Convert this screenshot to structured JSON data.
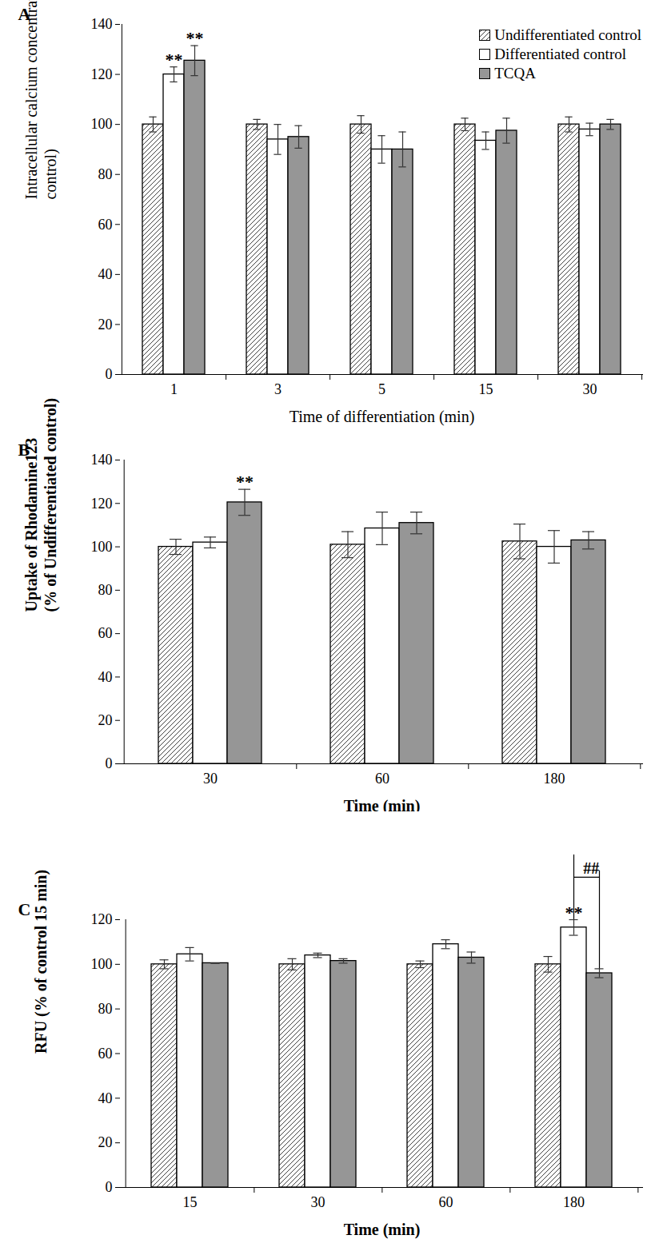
{
  "chart_data": [
    {
      "type": "bar",
      "title": "A",
      "x_label": "Time of differentiation (min)",
      "y_label": "Intracellular calcium concentration (% of\ncontrol)",
      "categories": [
        "1",
        "3",
        "5",
        "15",
        "30"
      ],
      "series": [
        {
          "name": "Undifferentiated control",
          "color": "#404040",
          "values": [
            100,
            100,
            100,
            100,
            100
          ],
          "errors": [
            3,
            2,
            3.5,
            2.5,
            3
          ]
        },
        {
          "name": "Differentiated control",
          "color": "#ffffff",
          "values": [
            120,
            94,
            90,
            93.5,
            98
          ],
          "errors": [
            3,
            6,
            5.5,
            3.5,
            2.5
          ]
        },
        {
          "name": "TCQA",
          "color": "#969696",
          "values": [
            125.5,
            95,
            90,
            97.5,
            100
          ],
          "errors": [
            6,
            4.5,
            7,
            5,
            2
          ]
        }
      ],
      "ylim": [
        0,
        140
      ],
      "yticks": [
        0,
        20,
        40,
        60,
        80,
        100,
        120,
        140
      ],
      "legend": "top-right",
      "annotations": [
        {
          "text": "**",
          "category": "1",
          "series": "Differentiated control"
        },
        {
          "text": "**",
          "category": "1",
          "series": "TCQA"
        }
      ]
    },
    {
      "type": "bar",
      "title": "B",
      "x_label": "Time (min)",
      "y_label": "Uptake of Rhodamine123\n(% of Undifferentiated control)",
      "categories": [
        "30",
        "60",
        "180"
      ],
      "series": [
        {
          "name": "Undifferentiated control",
          "color": "#404040",
          "values": [
            100,
            101,
            102.5
          ],
          "errors": [
            3.5,
            6,
            8
          ]
        },
        {
          "name": "Differentiated control",
          "color": "#ffffff",
          "values": [
            102,
            108.5,
            100
          ],
          "errors": [
            2.5,
            7.5,
            7.5
          ]
        },
        {
          "name": "TCQA",
          "color": "#969696",
          "values": [
            120.5,
            111,
            103
          ],
          "errors": [
            6,
            5,
            4
          ]
        }
      ],
      "ylim": [
        0,
        140
      ],
      "yticks": [
        0,
        20,
        40,
        60,
        80,
        100,
        120,
        140
      ],
      "annotations": [
        {
          "text": "**",
          "category": "30",
          "series": "TCQA"
        }
      ]
    },
    {
      "type": "bar",
      "title": "C",
      "x_label": "Time (min)",
      "y_label": "RFU (% of control 15 min)",
      "categories": [
        "15",
        "30",
        "60",
        "180"
      ],
      "series": [
        {
          "name": "Undifferentiated control",
          "color": "#404040",
          "values": [
            100,
            100,
            100,
            100
          ],
          "errors": [
            2,
            2.5,
            1.5,
            3.5
          ]
        },
        {
          "name": "Differentiated control",
          "color": "#ffffff",
          "values": [
            104.5,
            104,
            109,
            116.5
          ],
          "errors": [
            3,
            1,
            2,
            3.5
          ]
        },
        {
          "name": "TCQA",
          "color": "#969696",
          "values": [
            100.5,
            101.5,
            103,
            96
          ],
          "errors": [
            0,
            1,
            2.5,
            2
          ]
        }
      ],
      "ylim": [
        0,
        120
      ],
      "yticks": [
        0,
        20,
        40,
        60,
        80,
        100,
        120
      ],
      "annotations": [
        {
          "text": "**",
          "category": "180",
          "series": "Differentiated control"
        },
        {
          "text": "##",
          "category": "180",
          "series": [
            "Differentiated control",
            "TCQA"
          ],
          "y": 139
        }
      ]
    }
  ]
}
